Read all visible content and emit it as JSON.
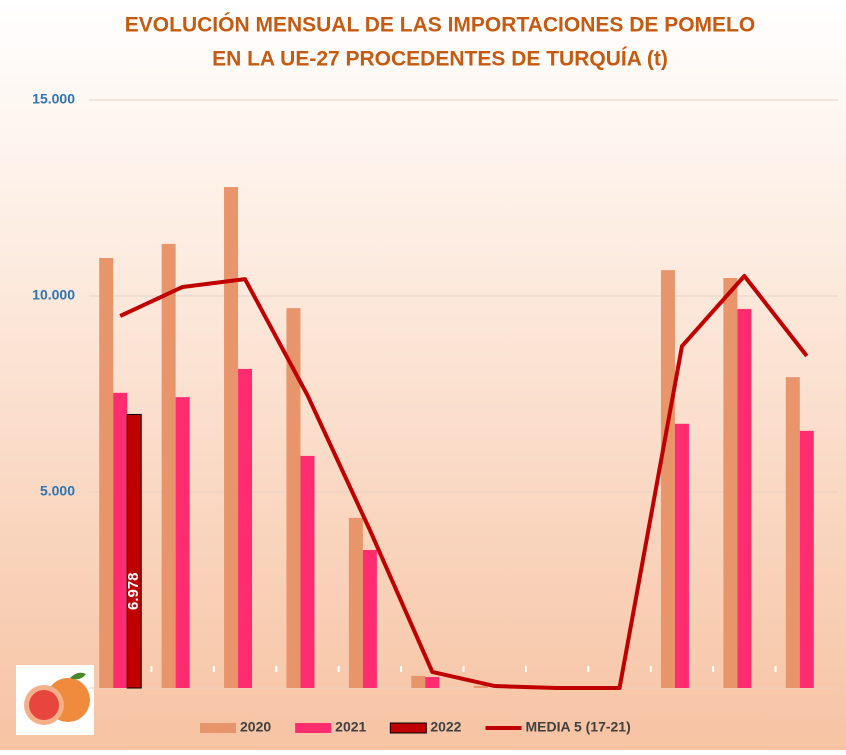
{
  "chart_data": {
    "type": "bar",
    "title": "EVOLUCIÓN MENSUAL DE LAS IMPORTACIONES DE POMELO",
    "subtitle": "EN LA UE-27 PROCEDENTES DE TURQUÍA (t)",
    "categories": [
      null,
      null,
      null,
      null,
      null,
      null,
      null,
      null,
      null,
      null,
      null,
      null
    ],
    "series": [
      {
        "name": "2020",
        "type": "bar",
        "color": "#e8956b",
        "values": [
          10970,
          11330,
          12780,
          9690,
          4340,
          310,
          50,
          0,
          0,
          10660,
          10460,
          7930
        ]
      },
      {
        "name": "2021",
        "type": "bar",
        "color": "#ff2d6f",
        "values": [
          7530,
          7420,
          8140,
          5920,
          3520,
          280,
          0,
          0,
          0,
          6740,
          9670,
          6560
        ]
      },
      {
        "name": "2022",
        "type": "bar",
        "color": "#c00000",
        "values": [
          6978,
          null,
          null,
          null,
          null,
          null,
          null,
          null,
          null,
          null,
          null,
          null
        ],
        "value_labels": [
          "6.978",
          null,
          null,
          null,
          null,
          null,
          null,
          null,
          null,
          null,
          null,
          null
        ]
      },
      {
        "name": "MEDIA 5 (17-21)",
        "type": "line",
        "color": "#c00000",
        "values": [
          9490,
          10230,
          10430,
          7470,
          4030,
          410,
          50,
          0,
          0,
          8720,
          10510,
          8470
        ]
      }
    ],
    "ylim": [
      0,
      15000
    ],
    "yticks": [
      {
        "value": 5000,
        "label": "5.000"
      },
      {
        "value": 10000,
        "label": "10.000"
      },
      {
        "value": 15000,
        "label": "15.000"
      }
    ],
    "grid": true
  }
}
